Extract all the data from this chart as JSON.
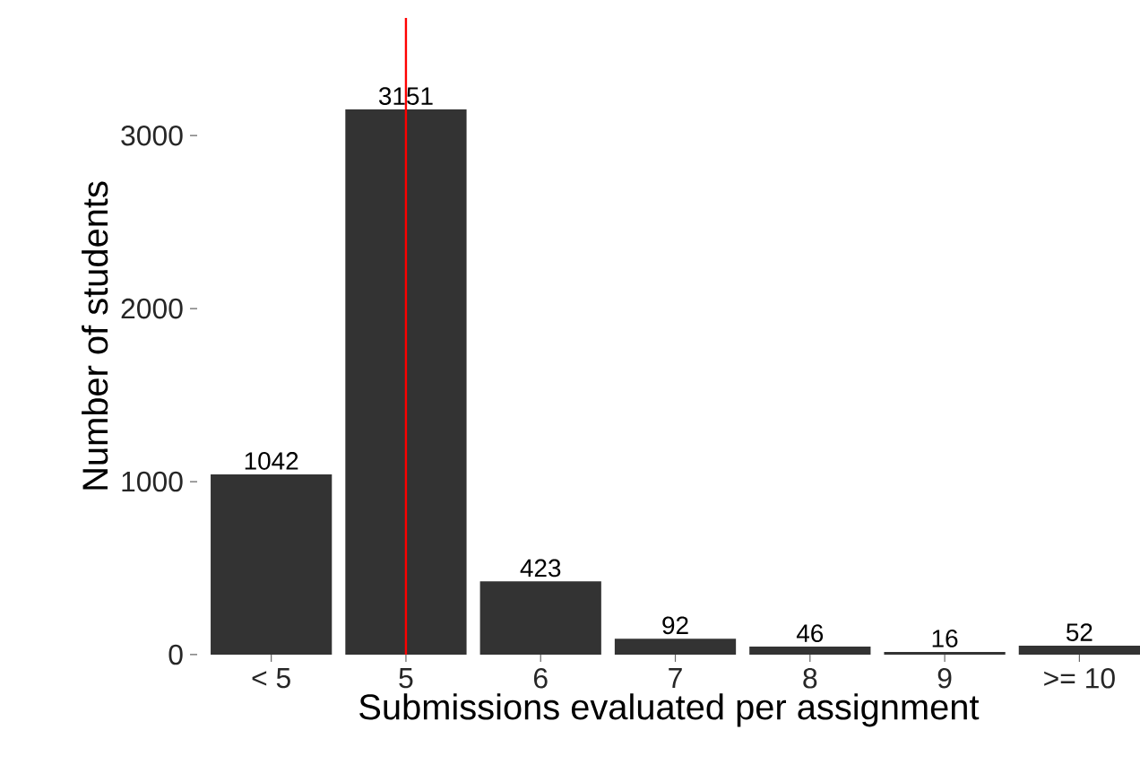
{
  "chart_data": {
    "type": "bar",
    "xlabel": "Submissions evaluated per assignment",
    "ylabel": "Number of students",
    "categories": [
      "< 5",
      "5",
      "6",
      "7",
      "8",
      "9",
      ">= 10"
    ],
    "values": [
      1042,
      3151,
      423,
      92,
      46,
      16,
      52
    ],
    "color": "#333333",
    "ylim": [
      0,
      3680
    ],
    "yticks": [
      0,
      1000,
      2000,
      3000
    ],
    "data_labels": true,
    "ref_lines": [
      {
        "axis": "x",
        "value": "5",
        "color": "#ff0000"
      }
    ]
  }
}
